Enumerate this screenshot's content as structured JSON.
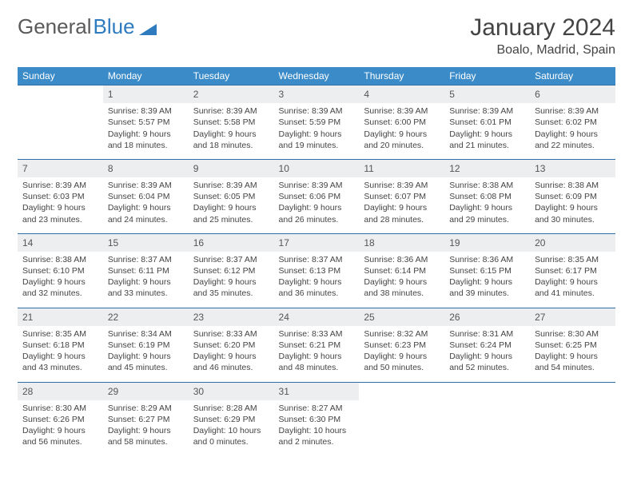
{
  "logo": {
    "text1": "General",
    "text2": "Blue"
  },
  "title": "January 2024",
  "location": "Boalo, Madrid, Spain",
  "colors": {
    "header_bg": "#3b8bc9",
    "header_text": "#ffffff",
    "daynum_bg": "#eceeef",
    "border": "#2f6fa8",
    "logo_gray": "#5a5a5a",
    "logo_blue": "#2f7bbf"
  },
  "weekdays": [
    "Sunday",
    "Monday",
    "Tuesday",
    "Wednesday",
    "Thursday",
    "Friday",
    "Saturday"
  ],
  "weeks": [
    {
      "nums": [
        "",
        "1",
        "2",
        "3",
        "4",
        "5",
        "6"
      ],
      "cells": [
        {},
        {
          "sunrise": "Sunrise: 8:39 AM",
          "sunset": "Sunset: 5:57 PM",
          "day1": "Daylight: 9 hours",
          "day2": "and 18 minutes."
        },
        {
          "sunrise": "Sunrise: 8:39 AM",
          "sunset": "Sunset: 5:58 PM",
          "day1": "Daylight: 9 hours",
          "day2": "and 18 minutes."
        },
        {
          "sunrise": "Sunrise: 8:39 AM",
          "sunset": "Sunset: 5:59 PM",
          "day1": "Daylight: 9 hours",
          "day2": "and 19 minutes."
        },
        {
          "sunrise": "Sunrise: 8:39 AM",
          "sunset": "Sunset: 6:00 PM",
          "day1": "Daylight: 9 hours",
          "day2": "and 20 minutes."
        },
        {
          "sunrise": "Sunrise: 8:39 AM",
          "sunset": "Sunset: 6:01 PM",
          "day1": "Daylight: 9 hours",
          "day2": "and 21 minutes."
        },
        {
          "sunrise": "Sunrise: 8:39 AM",
          "sunset": "Sunset: 6:02 PM",
          "day1": "Daylight: 9 hours",
          "day2": "and 22 minutes."
        }
      ]
    },
    {
      "nums": [
        "7",
        "8",
        "9",
        "10",
        "11",
        "12",
        "13"
      ],
      "cells": [
        {
          "sunrise": "Sunrise: 8:39 AM",
          "sunset": "Sunset: 6:03 PM",
          "day1": "Daylight: 9 hours",
          "day2": "and 23 minutes."
        },
        {
          "sunrise": "Sunrise: 8:39 AM",
          "sunset": "Sunset: 6:04 PM",
          "day1": "Daylight: 9 hours",
          "day2": "and 24 minutes."
        },
        {
          "sunrise": "Sunrise: 8:39 AM",
          "sunset": "Sunset: 6:05 PM",
          "day1": "Daylight: 9 hours",
          "day2": "and 25 minutes."
        },
        {
          "sunrise": "Sunrise: 8:39 AM",
          "sunset": "Sunset: 6:06 PM",
          "day1": "Daylight: 9 hours",
          "day2": "and 26 minutes."
        },
        {
          "sunrise": "Sunrise: 8:39 AM",
          "sunset": "Sunset: 6:07 PM",
          "day1": "Daylight: 9 hours",
          "day2": "and 28 minutes."
        },
        {
          "sunrise": "Sunrise: 8:38 AM",
          "sunset": "Sunset: 6:08 PM",
          "day1": "Daylight: 9 hours",
          "day2": "and 29 minutes."
        },
        {
          "sunrise": "Sunrise: 8:38 AM",
          "sunset": "Sunset: 6:09 PM",
          "day1": "Daylight: 9 hours",
          "day2": "and 30 minutes."
        }
      ]
    },
    {
      "nums": [
        "14",
        "15",
        "16",
        "17",
        "18",
        "19",
        "20"
      ],
      "cells": [
        {
          "sunrise": "Sunrise: 8:38 AM",
          "sunset": "Sunset: 6:10 PM",
          "day1": "Daylight: 9 hours",
          "day2": "and 32 minutes."
        },
        {
          "sunrise": "Sunrise: 8:37 AM",
          "sunset": "Sunset: 6:11 PM",
          "day1": "Daylight: 9 hours",
          "day2": "and 33 minutes."
        },
        {
          "sunrise": "Sunrise: 8:37 AM",
          "sunset": "Sunset: 6:12 PM",
          "day1": "Daylight: 9 hours",
          "day2": "and 35 minutes."
        },
        {
          "sunrise": "Sunrise: 8:37 AM",
          "sunset": "Sunset: 6:13 PM",
          "day1": "Daylight: 9 hours",
          "day2": "and 36 minutes."
        },
        {
          "sunrise": "Sunrise: 8:36 AM",
          "sunset": "Sunset: 6:14 PM",
          "day1": "Daylight: 9 hours",
          "day2": "and 38 minutes."
        },
        {
          "sunrise": "Sunrise: 8:36 AM",
          "sunset": "Sunset: 6:15 PM",
          "day1": "Daylight: 9 hours",
          "day2": "and 39 minutes."
        },
        {
          "sunrise": "Sunrise: 8:35 AM",
          "sunset": "Sunset: 6:17 PM",
          "day1": "Daylight: 9 hours",
          "day2": "and 41 minutes."
        }
      ]
    },
    {
      "nums": [
        "21",
        "22",
        "23",
        "24",
        "25",
        "26",
        "27"
      ],
      "cells": [
        {
          "sunrise": "Sunrise: 8:35 AM",
          "sunset": "Sunset: 6:18 PM",
          "day1": "Daylight: 9 hours",
          "day2": "and 43 minutes."
        },
        {
          "sunrise": "Sunrise: 8:34 AM",
          "sunset": "Sunset: 6:19 PM",
          "day1": "Daylight: 9 hours",
          "day2": "and 45 minutes."
        },
        {
          "sunrise": "Sunrise: 8:33 AM",
          "sunset": "Sunset: 6:20 PM",
          "day1": "Daylight: 9 hours",
          "day2": "and 46 minutes."
        },
        {
          "sunrise": "Sunrise: 8:33 AM",
          "sunset": "Sunset: 6:21 PM",
          "day1": "Daylight: 9 hours",
          "day2": "and 48 minutes."
        },
        {
          "sunrise": "Sunrise: 8:32 AM",
          "sunset": "Sunset: 6:23 PM",
          "day1": "Daylight: 9 hours",
          "day2": "and 50 minutes."
        },
        {
          "sunrise": "Sunrise: 8:31 AM",
          "sunset": "Sunset: 6:24 PM",
          "day1": "Daylight: 9 hours",
          "day2": "and 52 minutes."
        },
        {
          "sunrise": "Sunrise: 8:30 AM",
          "sunset": "Sunset: 6:25 PM",
          "day1": "Daylight: 9 hours",
          "day2": "and 54 minutes."
        }
      ]
    },
    {
      "nums": [
        "28",
        "29",
        "30",
        "31",
        "",
        "",
        ""
      ],
      "cells": [
        {
          "sunrise": "Sunrise: 8:30 AM",
          "sunset": "Sunset: 6:26 PM",
          "day1": "Daylight: 9 hours",
          "day2": "and 56 minutes."
        },
        {
          "sunrise": "Sunrise: 8:29 AM",
          "sunset": "Sunset: 6:27 PM",
          "day1": "Daylight: 9 hours",
          "day2": "and 58 minutes."
        },
        {
          "sunrise": "Sunrise: 8:28 AM",
          "sunset": "Sunset: 6:29 PM",
          "day1": "Daylight: 10 hours",
          "day2": "and 0 minutes."
        },
        {
          "sunrise": "Sunrise: 8:27 AM",
          "sunset": "Sunset: 6:30 PM",
          "day1": "Daylight: 10 hours",
          "day2": "and 2 minutes."
        },
        {},
        {},
        {}
      ]
    }
  ]
}
